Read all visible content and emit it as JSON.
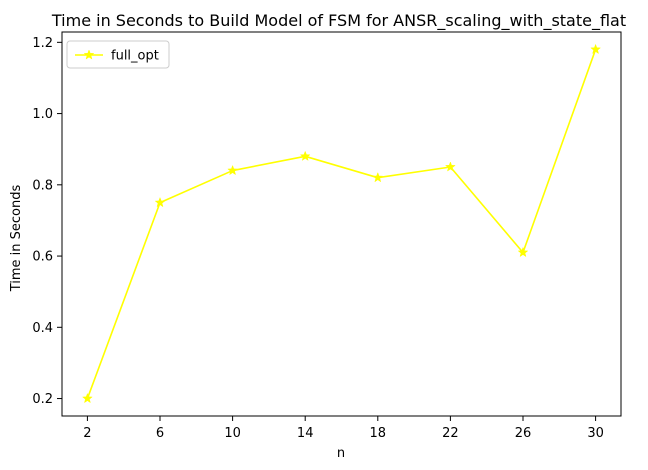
{
  "chart_data": {
    "type": "line",
    "title": "Time in Seconds to Build Model of FSM for ANSR_scaling_with_state_flat",
    "xlabel": "n",
    "ylabel": "Time in Seconds",
    "x": [
      2,
      6,
      10,
      14,
      18,
      22,
      26,
      30
    ],
    "xticks": [
      "2",
      "6",
      "10",
      "14",
      "18",
      "22",
      "26",
      "30"
    ],
    "yticks": [
      "0.2",
      "0.4",
      "0.6",
      "0.8",
      "1.0",
      "1.2"
    ],
    "ytick_values": [
      0.2,
      0.4,
      0.6,
      0.8,
      1.0,
      1.2
    ],
    "xlim": [
      0.6,
      31.4
    ],
    "ylim": [
      0.151,
      1.229
    ],
    "grid": false,
    "legend_position": "upper-left",
    "series": [
      {
        "name": "full_opt",
        "color": "#ffff00",
        "marker": "star",
        "values": [
          0.2,
          0.75,
          0.84,
          0.88,
          0.82,
          0.85,
          0.61,
          1.18
        ]
      }
    ]
  }
}
